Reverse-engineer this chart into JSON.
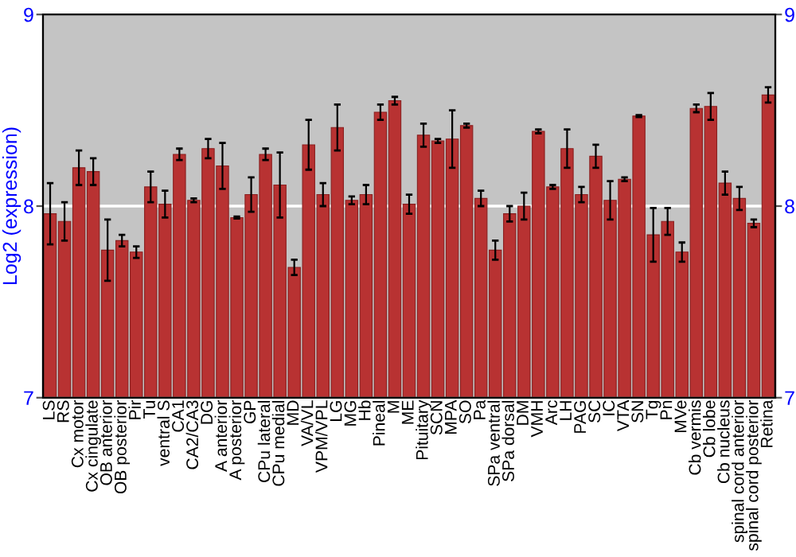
{
  "chart_data": {
    "type": "bar",
    "ylabel": "Log2 (expression)",
    "categories": [
      "LS",
      "RS",
      "Cx motor",
      "Cx cingulate",
      "OB anterior",
      "OB posterior",
      "Pir",
      "Tu",
      "ventral S",
      "CA1",
      "CA2/CA3",
      "DG",
      "A anterior",
      "A posterior",
      "GP",
      "CPu lateral",
      "CPu medial",
      "MD",
      "VA/VL",
      "VPM/VPL",
      "LG",
      "MG",
      "Hb",
      "Pineal",
      "M",
      "ME",
      "Pituitary",
      "SCN",
      "MPA",
      "SO",
      "Pa",
      "SPa ventral",
      "SPa dorsal",
      "DM",
      "VMH",
      "Arc",
      "LH",
      "PAG",
      "SC",
      "IC",
      "VTA",
      "SN",
      "Tg",
      "Pn",
      "MVe",
      "Cb vermis",
      "Cb lobe",
      "Cb nucleus",
      "spinal cord anterior",
      "spinal cord posterior",
      "Retina"
    ],
    "series": [
      {
        "color": "#b83232",
        "values": [
          7.96,
          7.92,
          8.2,
          8.18,
          7.77,
          7.82,
          7.76,
          8.1,
          8.01,
          8.27,
          8.03,
          8.3,
          8.21,
          7.94,
          8.06,
          8.27,
          8.11,
          7.68,
          8.32,
          8.06,
          8.41,
          8.03,
          8.06,
          8.49,
          8.55,
          8.01,
          8.37,
          8.34,
          8.35,
          8.42,
          8.04,
          7.77,
          7.96,
          8.0,
          8.39,
          8.1,
          8.3,
          8.06,
          8.26,
          8.03,
          8.14,
          8.47,
          7.85,
          7.92,
          7.76,
          8.51,
          8.52,
          8.12,
          8.04,
          7.91,
          8.58
        ],
        "errors": [
          0.16,
          0.1,
          0.09,
          0.07,
          0.16,
          0.03,
          0.03,
          0.08,
          0.07,
          0.03,
          0.01,
          0.05,
          0.12,
          0.005,
          0.09,
          0.03,
          0.17,
          0.04,
          0.13,
          0.06,
          0.12,
          0.02,
          0.05,
          0.04,
          0.02,
          0.05,
          0.06,
          0.01,
          0.15,
          0.01,
          0.04,
          0.05,
          0.04,
          0.07,
          0.01,
          0.01,
          0.1,
          0.04,
          0.06,
          0.1,
          0.01,
          0.005,
          0.14,
          0.07,
          0.05,
          0.02,
          0.07,
          0.06,
          0.06,
          0.02,
          0.04
        ]
      }
    ],
    "ylim": [
      7,
      9
    ],
    "yticks": [
      7,
      8,
      9
    ],
    "y2lim": [
      7,
      9
    ],
    "y2ticks": [
      7,
      8,
      9
    ],
    "ref_lines": [
      {
        "axis": "y",
        "value": 8,
        "color": "#ffffff"
      }
    ]
  }
}
